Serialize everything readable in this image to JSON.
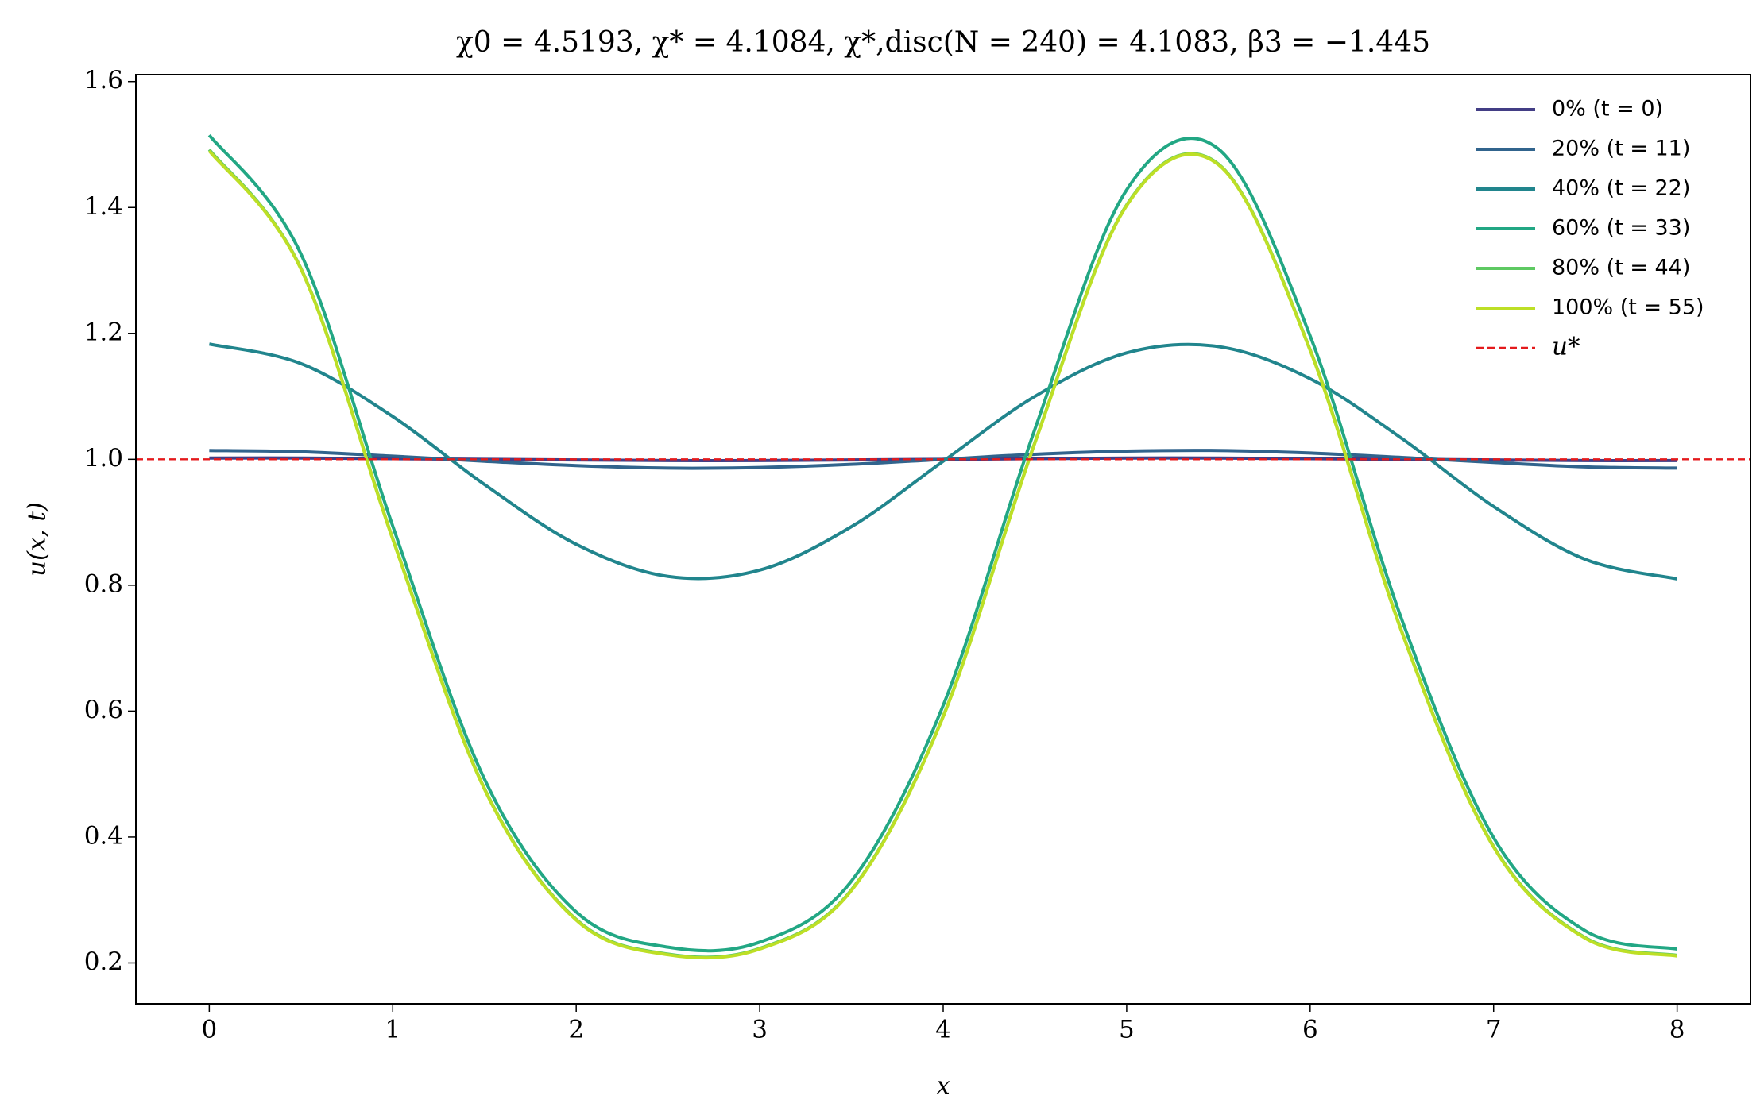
{
  "chart_data": {
    "type": "line",
    "title": "χ0 = 4.5193,  χ* = 4.1084,  χ*,disc(N = 240) = 4.1083,  β3 = −1.445",
    "x_label": "x",
    "y_label": "u(x, t)",
    "x": [
      0,
      0.5,
      1,
      1.5,
      2,
      2.5,
      3,
      3.5,
      4,
      4.5,
      5,
      5.5,
      6,
      6.5,
      7,
      7.5,
      8
    ],
    "series": [
      {
        "name": "0% (t = 0)",
        "color": "#433e85",
        "values": [
          1.002,
          1.002,
          1.001,
          1.0,
          0.999,
          0.998,
          0.998,
          0.999,
          1.0,
          1.001,
          1.002,
          1.002,
          1.001,
          1.0,
          0.999,
          0.998,
          0.998
        ]
      },
      {
        "name": "20% (t = 11)",
        "color": "#31648d",
        "values": [
          1.014,
          1.012,
          1.005,
          0.997,
          0.99,
          0.986,
          0.987,
          0.992,
          1.0,
          1.008,
          1.013,
          1.014,
          1.01,
          1.003,
          0.995,
          0.988,
          0.986
        ]
      },
      {
        "name": "40% (t = 22)",
        "color": "#21858d",
        "values": [
          1.183,
          1.152,
          1.068,
          0.96,
          0.865,
          0.814,
          0.824,
          0.893,
          0.997,
          1.1,
          1.169,
          1.179,
          1.128,
          1.033,
          0.925,
          0.841,
          0.81
        ]
      },
      {
        "name": "60% (t = 33)",
        "color": "#22a784",
        "values": [
          1.515,
          1.326,
          0.894,
          0.492,
          0.281,
          0.225,
          0.233,
          0.33,
          0.609,
          1.048,
          1.428,
          1.493,
          1.196,
          0.745,
          0.399,
          0.251,
          0.222
        ]
      },
      {
        "name": "80% (t = 44)",
        "color": "#5ec962",
        "values": [
          1.492,
          1.303,
          0.874,
          0.477,
          0.269,
          0.214,
          0.223,
          0.316,
          0.592,
          1.027,
          1.404,
          1.469,
          1.174,
          0.726,
          0.385,
          0.24,
          0.212
        ]
      },
      {
        "name": "100% (t = 55)",
        "color": "#bddf26",
        "values": [
          1.49,
          1.302,
          0.873,
          0.476,
          0.268,
          0.213,
          0.222,
          0.315,
          0.591,
          1.026,
          1.403,
          1.468,
          1.173,
          0.725,
          0.384,
          0.239,
          0.211
        ]
      }
    ],
    "reference_lines": [
      {
        "name": "u*",
        "y": 1,
        "color": "#e41a1c"
      }
    ],
    "xlim": [
      -0.4,
      8.4
    ],
    "ylim": [
      0.135,
      1.611
    ],
    "xticks": [
      0,
      1,
      2,
      3,
      4,
      5,
      6,
      7,
      8
    ],
    "yticks": [
      0.2,
      0.4,
      0.6,
      0.8,
      {
        "value": 1,
        "label": "1.0"
      },
      1.2,
      1.4,
      1.6
    ],
    "legend": "upper right"
  }
}
